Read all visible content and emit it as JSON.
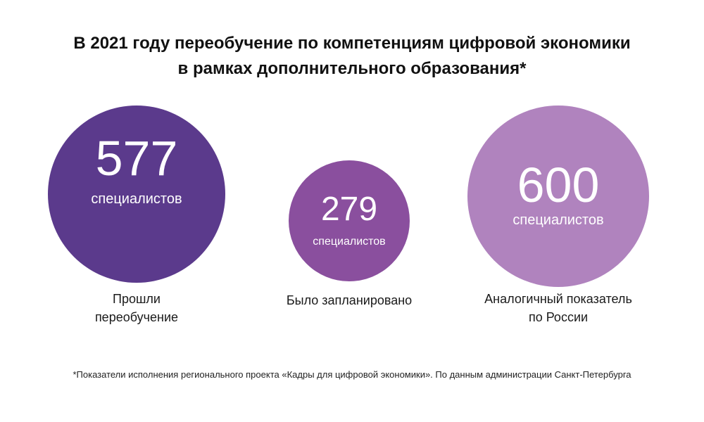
{
  "title": {
    "line1": "В 2021 году переобучение по компетенциям цифровой экономики",
    "line2": "в рамках дополнительного образования*"
  },
  "metrics": [
    {
      "value": "577",
      "unit": "специалистов",
      "caption_lines": [
        "Прошли",
        "переобучение"
      ],
      "color": "#5b3a8c"
    },
    {
      "value": "279",
      "unit": "специалистов",
      "caption_lines": [
        "Было запланировано"
      ],
      "color": "#8a4f9e"
    },
    {
      "value": "600",
      "unit": "специалистов",
      "caption_lines": [
        "Аналогичный показатель",
        "по России"
      ],
      "color": "#b083be"
    }
  ],
  "footnote": "*Показатели исполнения регионального проекта «Кадры для цифровой экономики». По данным администрации Санкт-Петербурга"
}
